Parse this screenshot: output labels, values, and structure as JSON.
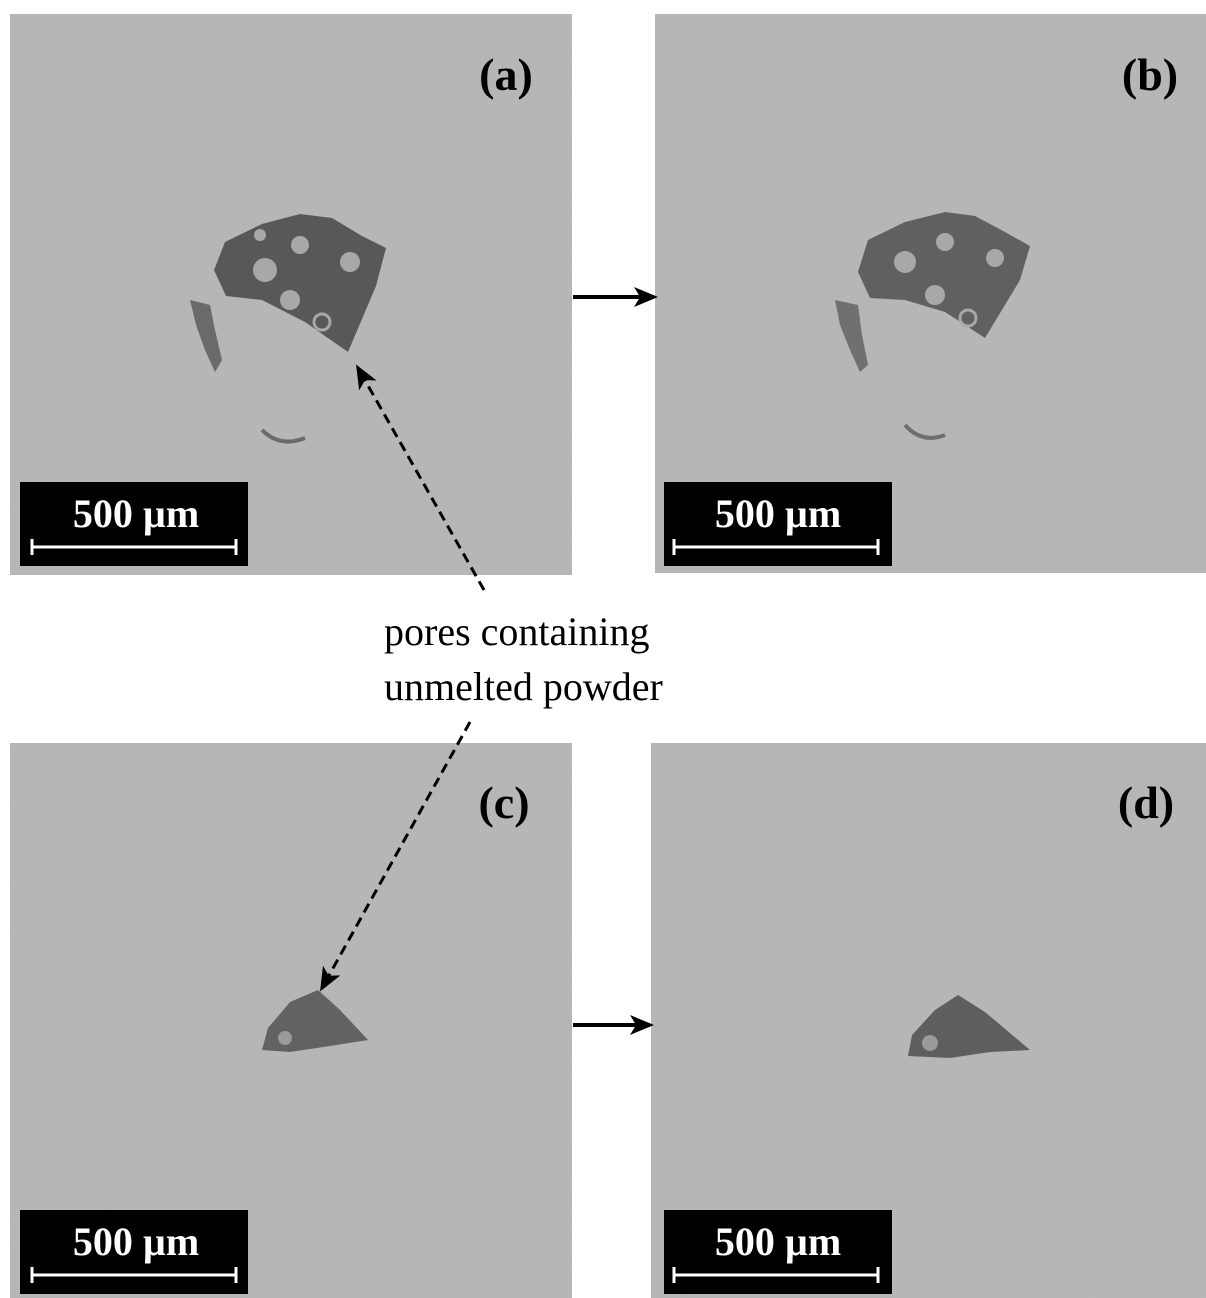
{
  "panels": [
    {
      "label": "(a)",
      "scale_bar": "500 µm"
    },
    {
      "label": "(b)",
      "scale_bar": "500 µm"
    },
    {
      "label": "(c)",
      "scale_bar": "500 µm"
    },
    {
      "label": "(d)",
      "scale_bar": "500 µm"
    }
  ],
  "annotation": [
    "pores containing",
    "unmelted powder"
  ]
}
